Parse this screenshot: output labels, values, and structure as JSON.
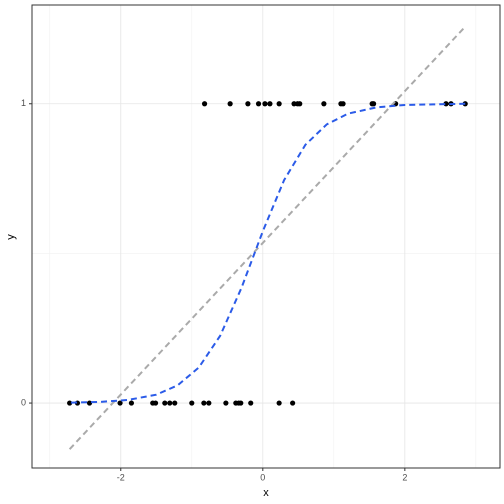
{
  "chart_data": {
    "type": "scatter",
    "x_label": "x",
    "y_label": "y",
    "xlim": [
      -3.25,
      3.34
    ],
    "ylim": [
      -0.217,
      1.33
    ],
    "xticks": [
      -2,
      0,
      2
    ],
    "yticks": [
      0,
      1
    ],
    "x_minor_grid": [
      -3,
      -1,
      1,
      3
    ],
    "y_minor_grid": [
      0.5
    ],
    "grid": true,
    "series": [
      {
        "kind": "points",
        "color": "#000000",
        "x": [
          -0.82,
          -0.46,
          -0.21,
          -0.06,
          0.03,
          0.1,
          0.23,
          0.44,
          0.49,
          0.52,
          0.86,
          1.1,
          1.13,
          1.54,
          1.56,
          1.87,
          2.58,
          2.65,
          2.85,
          -2.72,
          -2.61,
          -2.44,
          -2.01,
          -1.85,
          -1.55,
          -1.51,
          -1.38,
          -1.31,
          -1.24,
          -1.0,
          -0.83,
          -0.76,
          -0.52,
          -0.38,
          -0.34,
          -0.31,
          -0.17,
          0.23,
          0.42
        ],
        "values": [
          1,
          1,
          1,
          1,
          1,
          1,
          1,
          1,
          1,
          1,
          1,
          1,
          1,
          1,
          1,
          1,
          1,
          1,
          1,
          0,
          0,
          0,
          0,
          0,
          0,
          0,
          0,
          0,
          0,
          0,
          0,
          0,
          0,
          0,
          0,
          0,
          0,
          0,
          0
        ]
      },
      {
        "kind": "line",
        "color": "#aaaaaa",
        "x": [
          -2.72,
          2.86
        ],
        "values": [
          -0.154,
          1.26
        ]
      },
      {
        "kind": "line",
        "color": "#2b5be8",
        "x": [
          -2.7,
          -2.3,
          -1.9,
          -1.5,
          -1.2,
          -0.9,
          -0.6,
          -0.3,
          0,
          0.3,
          0.6,
          0.9,
          1.2,
          1.6,
          2.0,
          2.4,
          2.86
        ],
        "values": [
          0.0013,
          0.0037,
          0.0103,
          0.028,
          0.059,
          0.119,
          0.225,
          0.385,
          0.574,
          0.745,
          0.863,
          0.931,
          0.967,
          0.988,
          0.996,
          0.998,
          1.0
        ]
      }
    ]
  }
}
